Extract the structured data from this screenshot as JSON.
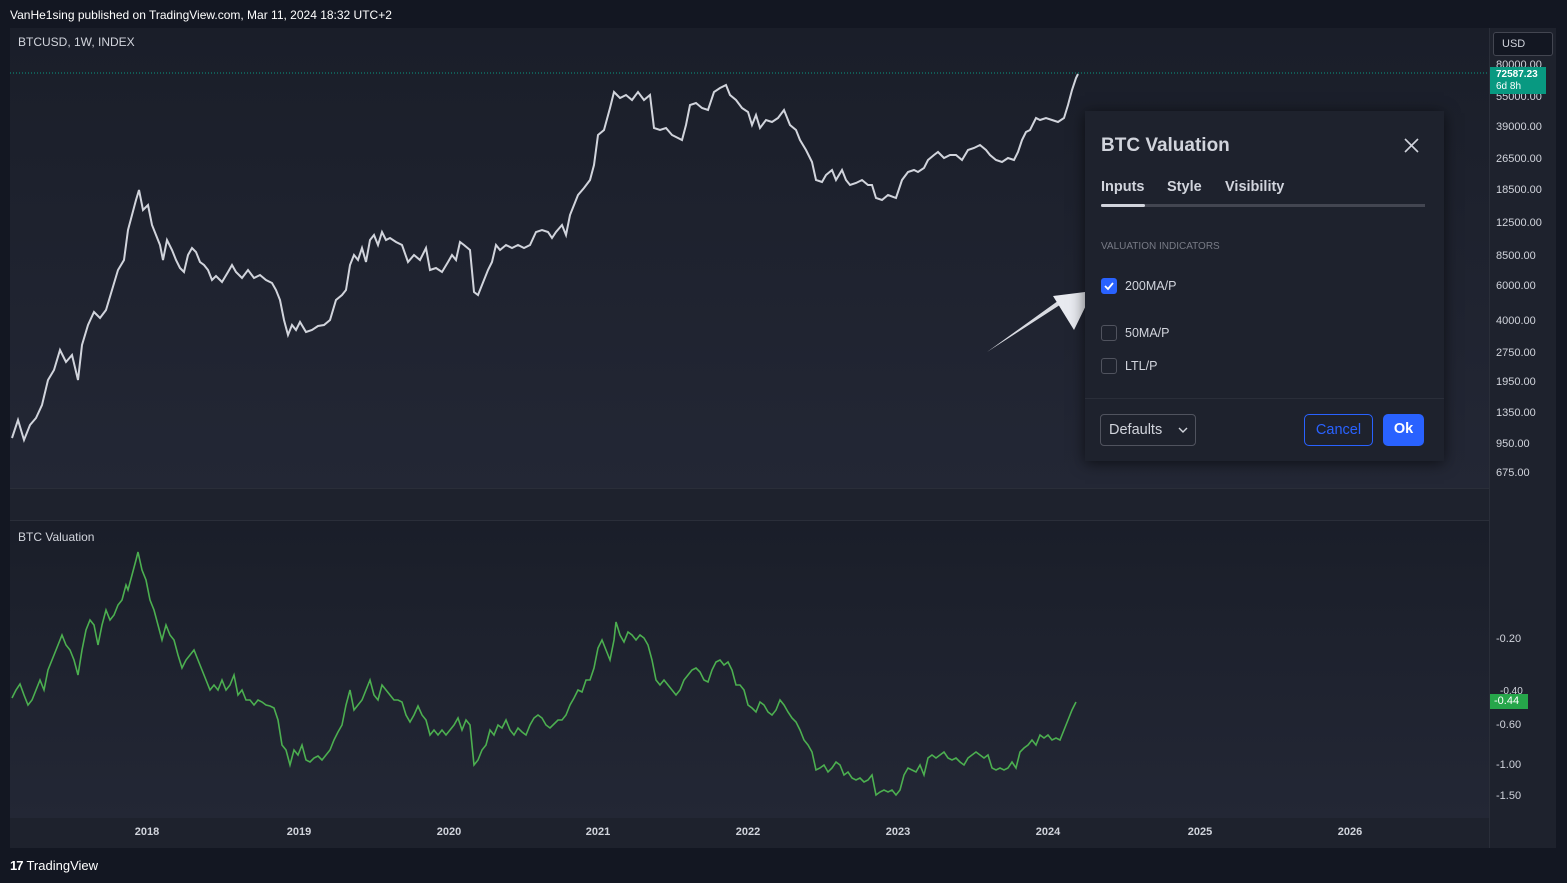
{
  "header": {
    "published": "VanHe1sing published on TradingView.com, Mar 11, 2024 18:32 UTC+2"
  },
  "main_pane": {
    "symbol_label": "BTCUSD, 1W, INDEX",
    "currency_button": "USD",
    "price_badge": {
      "price": "72587.23",
      "countdown": "6d 8h"
    },
    "price_axis_ticks": [
      "80000.00",
      "55000.00",
      "39000.00",
      "26500.00",
      "18500.00",
      "12500.00",
      "8500.00",
      "6000.00",
      "4000.00",
      "2750.00",
      "1950.00",
      "1350.00",
      "950.00",
      "675.00"
    ]
  },
  "valuation_pane": {
    "title": "BTC Valuation",
    "value_badge": "-0.44",
    "hidden_tick": "-0.40",
    "axis_ticks": [
      "-0.20",
      "-0.60",
      "-1.00",
      "-1.50"
    ]
  },
  "time_axis": {
    "ticks": [
      "2018",
      "2019",
      "2020",
      "2021",
      "2022",
      "2023",
      "2024",
      "2025",
      "2026"
    ]
  },
  "footer": {
    "brand": "TradingView",
    "brand_mark": "17"
  },
  "dialog": {
    "title": "BTC Valuation",
    "tabs": [
      {
        "label": "Inputs",
        "active": true
      },
      {
        "label": "Style",
        "active": false
      },
      {
        "label": "Visibility",
        "active": false
      }
    ],
    "section_label": "VALUATION INDICATORS",
    "options": [
      {
        "label": "200MA/P",
        "checked": true
      },
      {
        "label": "50MA/P",
        "checked": false
      },
      {
        "label": "LTL/P",
        "checked": false
      }
    ],
    "defaults_label": "Defaults",
    "cancel_label": "Cancel",
    "ok_label": "Ok"
  },
  "colors": {
    "background": "#131722",
    "pane": "#1e222d",
    "price_line": "#d1d4dc",
    "valuation_line": "#4caf50",
    "accent": "#2962ff",
    "badge_green": "#089981",
    "arrow": "#e8eaf0"
  }
}
